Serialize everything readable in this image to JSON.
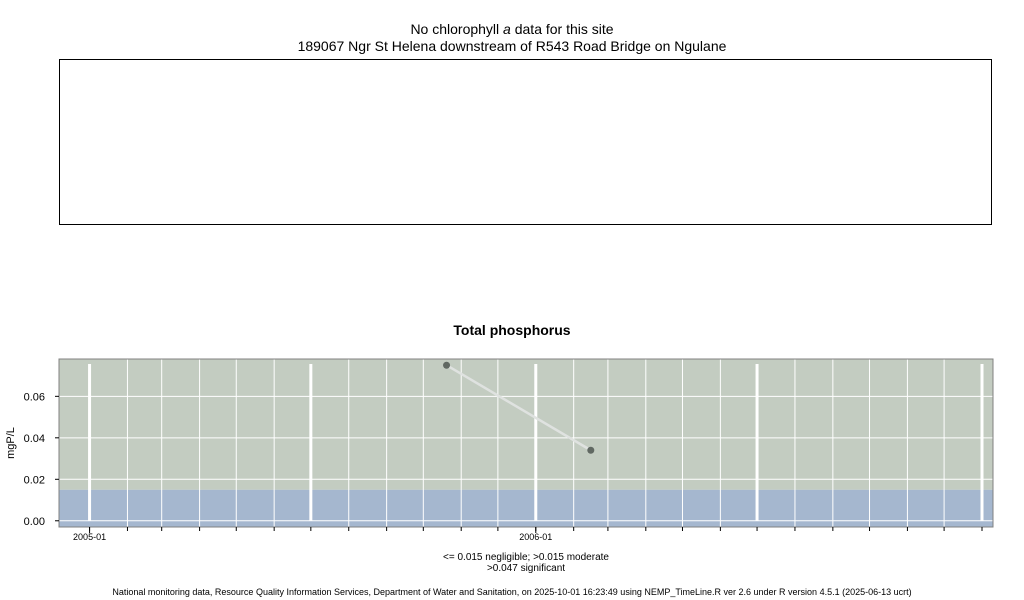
{
  "chlorophyll_panel": {
    "title_prefix": "No chlorophyll",
    "title_italic": "a",
    "title_suffix": "data for this site",
    "site_label": "189067 Ngr St Helena downstream of R543 Road Bridge on Ngulane"
  },
  "chart_data": {
    "type": "line",
    "title": "Total phosphorus",
    "ylabel": "mgP/L",
    "xlabel": "",
    "x_range": [
      "2004-12-07",
      "2007-01-10"
    ],
    "ylim": [
      -0.003,
      0.078
    ],
    "y_ticks": [
      0.0,
      0.02,
      0.04,
      0.06
    ],
    "y_tick_labels": [
      "0.00",
      "0.02",
      "0.04",
      "0.06"
    ],
    "x_tick_dates": [
      "2005-01-01",
      "2006-01-01"
    ],
    "x_tick_labels": [
      "2005-01",
      "2006-01"
    ],
    "series": [
      {
        "x": [
          "2005-10-20",
          "2006-02-15"
        ],
        "y": [
          0.075,
          0.034
        ]
      }
    ],
    "bands": [
      {
        "from": -0.003,
        "to": 0.015,
        "color": "#a5b7cf"
      },
      {
        "from": 0.015,
        "to": 0.078,
        "color": "#c3ccc1"
      }
    ],
    "grid": true,
    "colors": {
      "line": "#dfe2e0",
      "point": "#606862",
      "grid": "#ffffff"
    }
  },
  "legend_note": {
    "line1": "<= 0.015 negligible; >0.015 moderate",
    "line2": ">0.047 significant"
  },
  "footer": "National monitoring data, Resource Quality Information Services, Department of Water and Sanitation, on 2025-10-01 16:23:49 using NEMP_TimeLine.R ver 2.6 under R version 4.5.1 (2025-06-13 ucrt)"
}
